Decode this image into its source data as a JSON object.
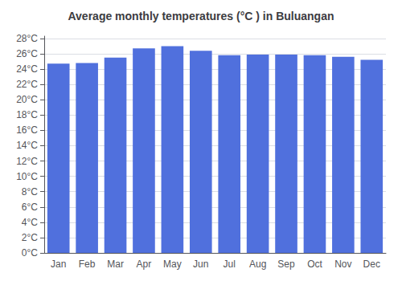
{
  "chart_data": {
    "type": "bar",
    "title": "Average monthly temperatures (°C ) in Buluangan",
    "categories": [
      "Jan",
      "Feb",
      "Mar",
      "Apr",
      "May",
      "Jun",
      "Jul",
      "Aug",
      "Sep",
      "Oct",
      "Nov",
      "Dec"
    ],
    "values": [
      24.7,
      24.8,
      25.5,
      26.7,
      27.0,
      26.4,
      25.8,
      25.9,
      25.9,
      25.8,
      25.6,
      25.2
    ],
    "ylim": [
      0,
      28.3
    ],
    "yticks": [
      {
        "value": 0,
        "label": "0°C"
      },
      {
        "value": 2,
        "label": "2°C"
      },
      {
        "value": 4,
        "label": "4°C"
      },
      {
        "value": 6,
        "label": "6°C"
      },
      {
        "value": 8,
        "label": "8°C"
      },
      {
        "value": 10,
        "label": "10°C"
      },
      {
        "value": 12,
        "label": "12°C"
      },
      {
        "value": 14,
        "label": "14°C"
      },
      {
        "value": 16,
        "label": "16°C"
      },
      {
        "value": 18,
        "label": "18°C"
      },
      {
        "value": 20,
        "label": "20°C"
      },
      {
        "value": 22,
        "label": "22°C"
      },
      {
        "value": 24,
        "label": "24°C"
      },
      {
        "value": 26,
        "label": "26°C"
      },
      {
        "value": 28,
        "label": "28°C"
      }
    ],
    "grid": true
  }
}
